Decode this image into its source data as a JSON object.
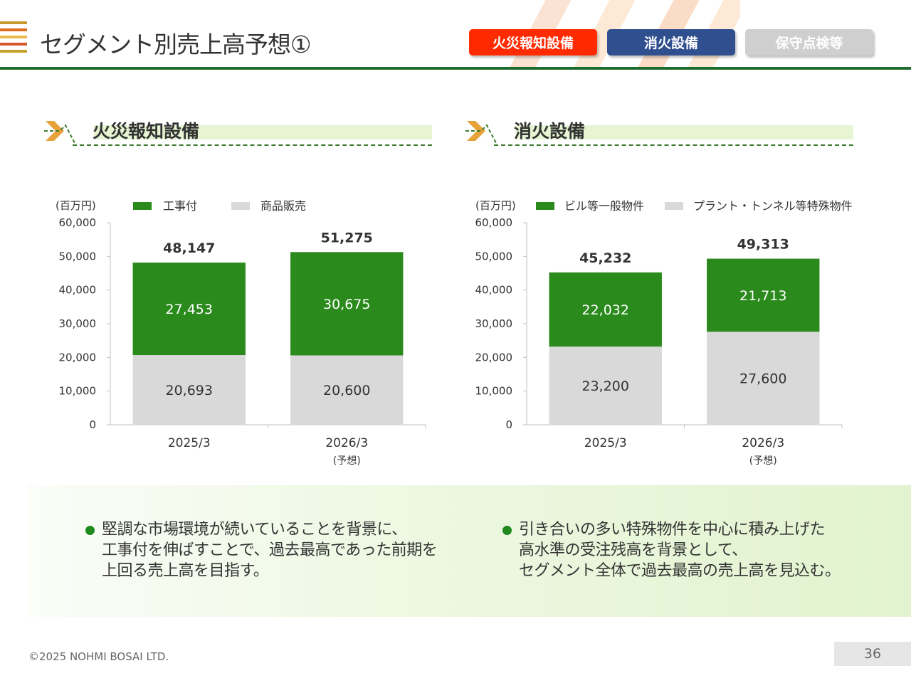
{
  "header": {
    "title": "セグメント別売上高予想①",
    "tabs": [
      {
        "label": "火災報知設備",
        "color": "#ff2a00"
      },
      {
        "label": "消火設備",
        "color": "#2f4f8f"
      },
      {
        "label": "保守点検等",
        "color": "#cfcfcf"
      }
    ]
  },
  "sections": [
    {
      "title": "火災報知設備"
    },
    {
      "title": "消火設備"
    }
  ],
  "chart_data": [
    {
      "type": "bar",
      "stacked": true,
      "unit_label": "(百万円)",
      "categories": [
        "2025/3",
        "2026/3"
      ],
      "category_sublabels": [
        "",
        "(予想)"
      ],
      "series": [
        {
          "name": "工事付",
          "values": [
            27453,
            30675
          ],
          "labels": [
            "27,453",
            "30,675"
          ],
          "color": "#2a8a1c"
        },
        {
          "name": "商品販売",
          "values": [
            20693,
            20600
          ],
          "labels": [
            "20,693",
            "20,600"
          ],
          "color": "#d9d9d9"
        }
      ],
      "totals": [
        48147,
        51275
      ],
      "total_labels": [
        "48,147",
        "51,275"
      ],
      "ylim": [
        0,
        60000
      ],
      "y_ticks": [
        0,
        10000,
        20000,
        30000,
        40000,
        50000,
        60000
      ],
      "y_tick_labels": [
        "0",
        "10,000",
        "20,000",
        "30,000",
        "40,000",
        "50,000",
        "60,000"
      ],
      "legend_position": "top"
    },
    {
      "type": "bar",
      "stacked": true,
      "unit_label": "(百万円)",
      "categories": [
        "2025/3",
        "2026/3"
      ],
      "category_sublabels": [
        "",
        "(予想)"
      ],
      "series": [
        {
          "name": "ビル等一般物件",
          "values": [
            22032,
            21713
          ],
          "labels": [
            "22,032",
            "21,713"
          ],
          "color": "#2a8a1c"
        },
        {
          "name": "プラント・トンネル等特殊物件",
          "values": [
            23200,
            27600
          ],
          "labels": [
            "23,200",
            "27,600"
          ],
          "color": "#d9d9d9"
        }
      ],
      "totals": [
        45232,
        49313
      ],
      "total_labels": [
        "45,232",
        "49,313"
      ],
      "ylim": [
        0,
        60000
      ],
      "y_ticks": [
        0,
        10000,
        20000,
        30000,
        40000,
        50000,
        60000
      ],
      "y_tick_labels": [
        "0",
        "10,000",
        "20,000",
        "30,000",
        "40,000",
        "50,000",
        "60,000"
      ],
      "legend_position": "top"
    }
  ],
  "summary": [
    {
      "lines": [
        "堅調な市場環境が続いていることを背景に、",
        "工事付を伸ばすことで、過去最高であった前期を",
        "上回る売上高を目指す。"
      ]
    },
    {
      "lines": [
        "引き合いの多い特殊物件を中心に積み上げた",
        "高水準の受注残高を背景として、",
        "セグメント全体で過去最高の売上高を見込む。"
      ]
    }
  ],
  "footer": {
    "copyright": "©2025 NOHMI BOSAI LTD.",
    "page": "36"
  }
}
